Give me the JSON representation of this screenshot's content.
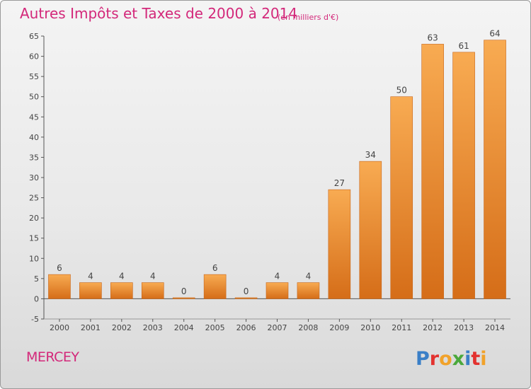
{
  "chart_data": {
    "type": "bar",
    "title": "Autres Impôts et Taxes de 2000 à 2014",
    "subtitle": "(en milliers d'€)",
    "categories": [
      "2000",
      "2001",
      "2002",
      "2003",
      "2004",
      "2005",
      "2006",
      "2007",
      "2008",
      "2009",
      "2010",
      "2011",
      "2012",
      "2013",
      "2014"
    ],
    "values": [
      6,
      4,
      4,
      4,
      0,
      6,
      0,
      4,
      4,
      27,
      34,
      50,
      63,
      61,
      64
    ],
    "ylim": [
      -5,
      65
    ],
    "yticks": [
      -5,
      0,
      5,
      10,
      15,
      20,
      25,
      30,
      35,
      40,
      45,
      50,
      55,
      60,
      65
    ],
    "grid": false,
    "bar_color": "#f0952f"
  },
  "footer": {
    "commune": "MERCEY",
    "logo_text": "Proxiti"
  },
  "colors": {
    "title": "#d3287a",
    "axis": "#444444",
    "bar_light": "#f7a84e",
    "bar_dark": "#d8701a"
  }
}
